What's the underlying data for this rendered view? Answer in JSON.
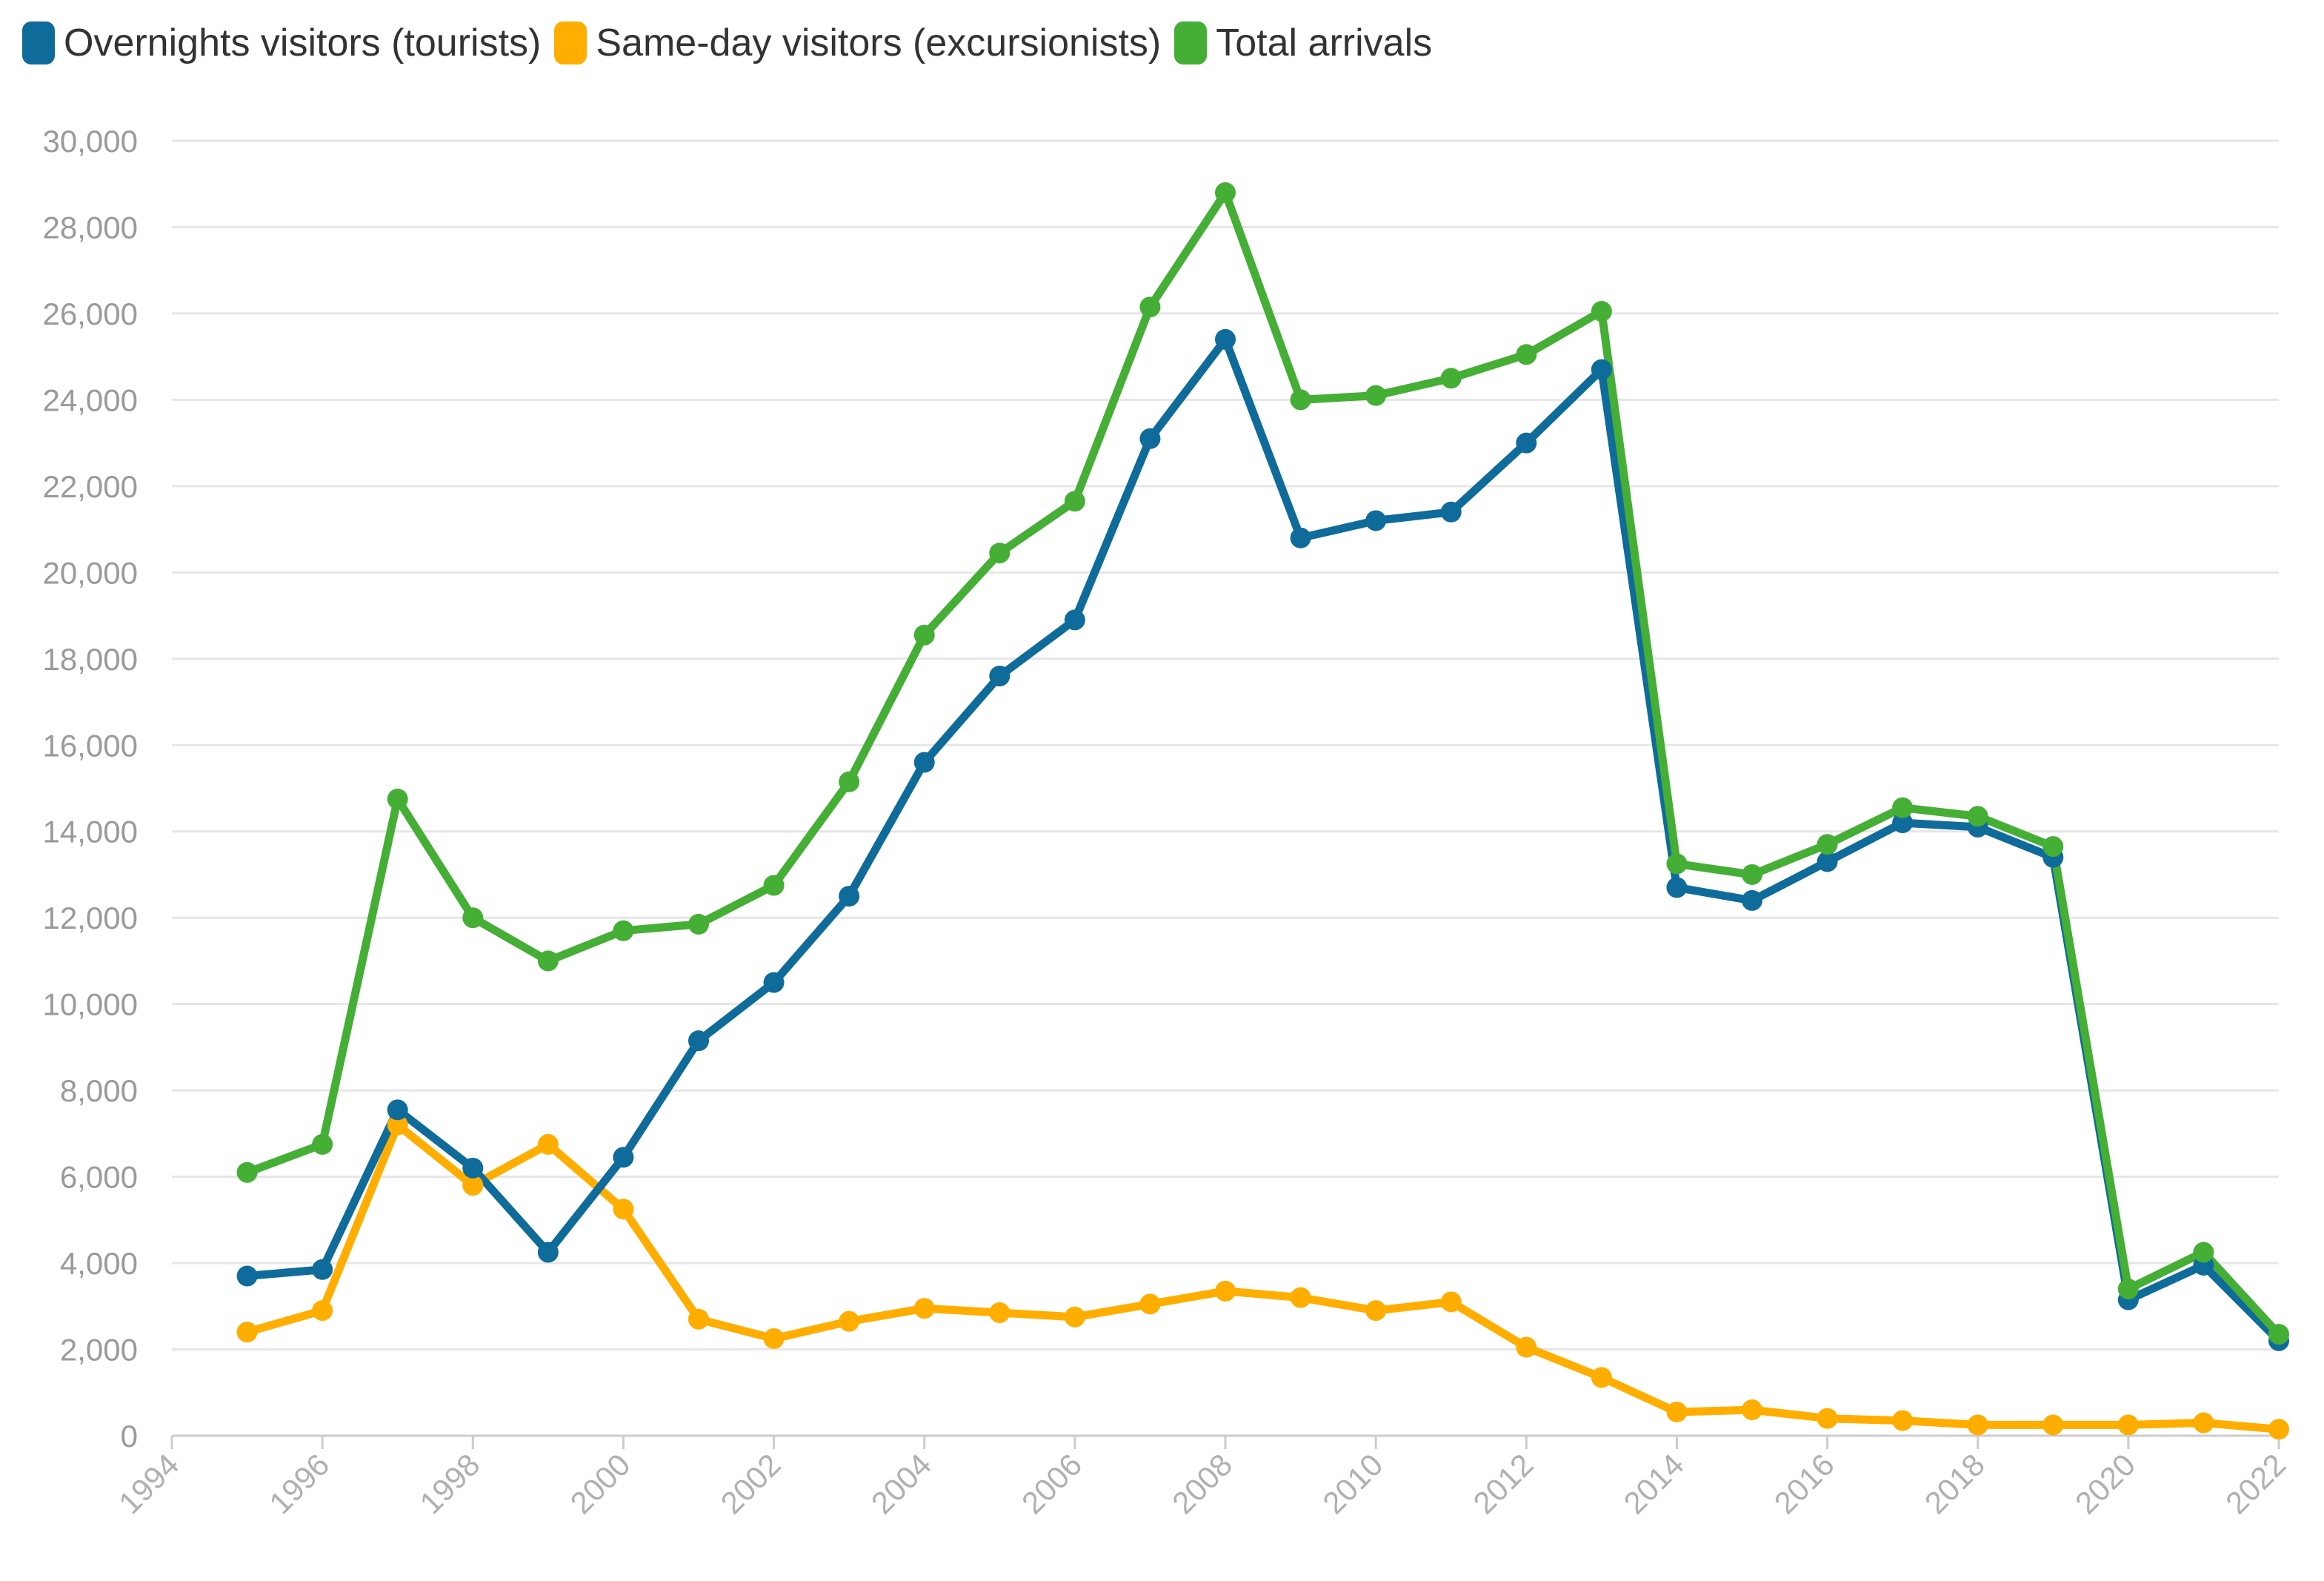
{
  "chart_data": {
    "type": "line",
    "title": "",
    "xlabel": "",
    "ylabel": "",
    "xlim": [
      1994,
      2022
    ],
    "ylim": [
      0,
      30000
    ],
    "grid": true,
    "legend_position": "top-left",
    "x_ticks": [
      "1994",
      "1996",
      "1998",
      "2000",
      "2002",
      "2004",
      "2006",
      "2008",
      "2010",
      "2012",
      "2014",
      "2016",
      "2018",
      "2020",
      "2022"
    ],
    "y_ticks": [
      "0",
      "2,000",
      "4,000",
      "6,000",
      "8,000",
      "10,000",
      "12,000",
      "14,000",
      "16,000",
      "18,000",
      "20,000",
      "22,000",
      "24,000",
      "26,000",
      "28,000",
      "30,000"
    ],
    "x": [
      1995,
      1996,
      1997,
      1998,
      1999,
      2000,
      2001,
      2002,
      2003,
      2004,
      2005,
      2006,
      2007,
      2008,
      2009,
      2010,
      2011,
      2012,
      2013,
      2014,
      2015,
      2016,
      2017,
      2018,
      2019,
      2020,
      2021,
      2022
    ],
    "series": [
      {
        "name": "Overnights visitors (tourists)",
        "color": "#0f6b99",
        "values": [
          3700,
          3850,
          7550,
          6200,
          4250,
          6450,
          9150,
          10500,
          12500,
          15600,
          17600,
          18900,
          23100,
          25400,
          20800,
          21200,
          21400,
          23000,
          24700,
          12700,
          12400,
          13300,
          14200,
          14100,
          13400,
          3150,
          3950,
          2200
        ]
      },
      {
        "name": "Same-day visitors (excursionists)",
        "color": "#ffae00",
        "values": [
          2400,
          2900,
          7200,
          5800,
          6750,
          5250,
          2700,
          2250,
          2650,
          2950,
          2850,
          2750,
          3050,
          3350,
          3200,
          2900,
          3100,
          2050,
          1350,
          550,
          600,
          400,
          350,
          250,
          250,
          250,
          300,
          150
        ]
      },
      {
        "name": "Total arrivals",
        "color": "#44ae35",
        "values": [
          6100,
          6750,
          14750,
          12000,
          11000,
          11700,
          11850,
          12750,
          15150,
          18550,
          20450,
          21650,
          26150,
          28800,
          24000,
          24100,
          24500,
          25050,
          26050,
          13250,
          13000,
          13700,
          14550,
          14350,
          13650,
          3400,
          4250,
          2350
        ]
      }
    ]
  }
}
